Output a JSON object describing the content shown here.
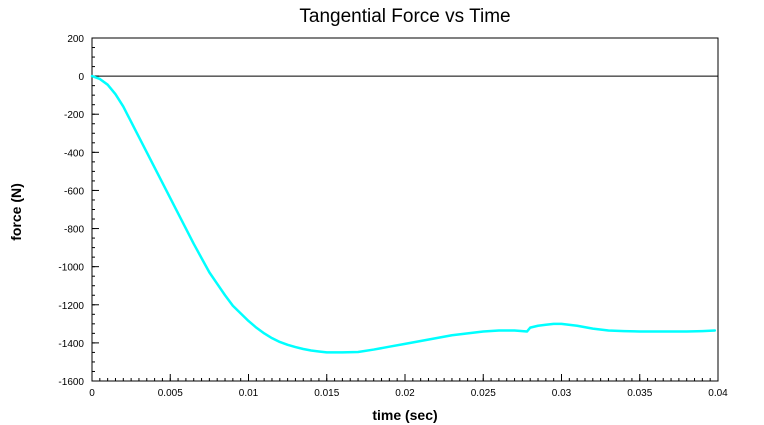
{
  "chart_data": {
    "type": "line",
    "title": "Tangential Force vs Time",
    "xlabel": "time (sec)",
    "ylabel": "force (N)",
    "xlim": [
      0,
      0.04
    ],
    "ylim": [
      -1600,
      200
    ],
    "xticks": [
      0,
      0.005,
      0.01,
      0.015,
      0.02,
      0.025,
      0.03,
      0.035,
      0.04
    ],
    "xtick_labels": [
      "0",
      "0.005",
      "0.01",
      "0.015",
      "0.02",
      "0.025",
      "0.03",
      "0.035",
      "0.04"
    ],
    "yticks": [
      200,
      0,
      -200,
      -400,
      -600,
      -800,
      -1000,
      -1200,
      -1400,
      -1600
    ],
    "ytick_labels": [
      "200",
      "0",
      "-200",
      "-400",
      "-600",
      "-800",
      "-1000",
      "-1200",
      "-1400",
      "-1600"
    ],
    "zero_line": true,
    "grid": false,
    "series": [
      {
        "color": "#00ffff",
        "x": [
          0,
          0.0005,
          0.001,
          0.0015,
          0.002,
          0.0025,
          0.003,
          0.0035,
          0.004,
          0.0045,
          0.005,
          0.0055,
          0.006,
          0.0065,
          0.007,
          0.0075,
          0.008,
          0.0085,
          0.009,
          0.0095,
          0.01,
          0.0105,
          0.011,
          0.0115,
          0.012,
          0.0125,
          0.013,
          0.0135,
          0.014,
          0.0145,
          0.015,
          0.016,
          0.017,
          0.018,
          0.019,
          0.02,
          0.021,
          0.022,
          0.023,
          0.024,
          0.025,
          0.026,
          0.027,
          0.0278,
          0.028,
          0.0285,
          0.029,
          0.0295,
          0.03,
          0.031,
          0.032,
          0.033,
          0.034,
          0.035,
          0.036,
          0.037,
          0.038,
          0.039,
          0.0398
        ],
        "y": [
          0,
          -15,
          -45,
          -95,
          -160,
          -240,
          -320,
          -400,
          -480,
          -560,
          -640,
          -720,
          -800,
          -880,
          -955,
          -1030,
          -1090,
          -1150,
          -1205,
          -1245,
          -1285,
          -1320,
          -1350,
          -1375,
          -1395,
          -1410,
          -1422,
          -1432,
          -1440,
          -1445,
          -1450,
          -1450,
          -1448,
          -1435,
          -1420,
          -1405,
          -1390,
          -1375,
          -1360,
          -1350,
          -1340,
          -1335,
          -1335,
          -1340,
          -1320,
          -1310,
          -1305,
          -1300,
          -1300,
          -1310,
          -1325,
          -1335,
          -1338,
          -1340,
          -1340,
          -1340,
          -1340,
          -1338,
          -1335
        ]
      }
    ]
  }
}
